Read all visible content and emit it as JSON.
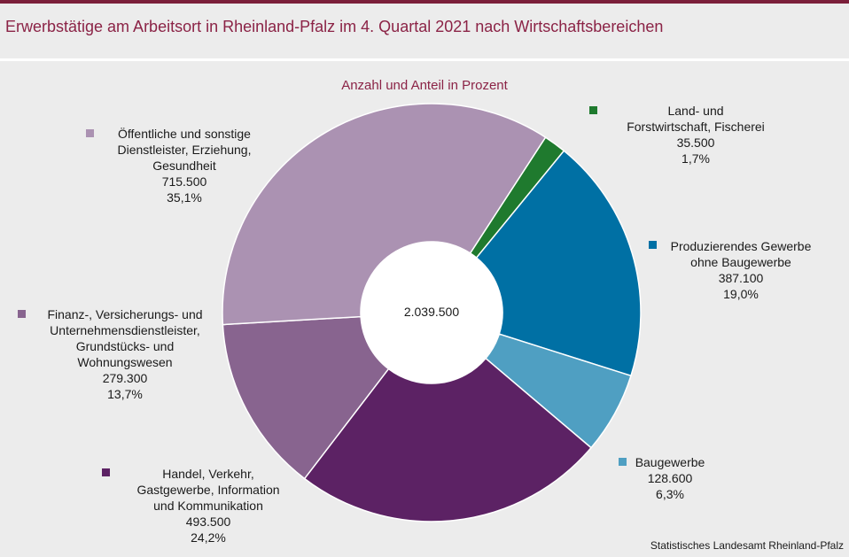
{
  "title": "Erwerbstätige am Arbeitsort in Rheinland-Pfalz im 4. Quartal 2021 nach Wirtschaftsbereichen",
  "subtitle": "Anzahl und Anteil in Prozent",
  "source": "Statistisches Landesamt Rheinland-Pfalz",
  "chart_data": {
    "type": "pie",
    "donut": true,
    "total_label": "2.039.500",
    "total": 2039500,
    "slices": [
      {
        "label_lines": [
          "Land- und",
          "Forstwirtschaft, Fischerei"
        ],
        "value": 35500,
        "value_label": "35.500",
        "percent": 1.7,
        "percent_label": "1,7%",
        "color": "#1f7a2e"
      },
      {
        "label_lines": [
          "Produzierendes Gewerbe",
          "ohne Baugewerbe"
        ],
        "value": 387100,
        "value_label": "387.100",
        "percent": 19.0,
        "percent_label": "19,0%",
        "color": "#0070a4"
      },
      {
        "label_lines": [
          "Baugewerbe"
        ],
        "value": 128600,
        "value_label": "128.600",
        "percent": 6.3,
        "percent_label": "6,3%",
        "color": "#4f9fc2"
      },
      {
        "label_lines": [
          "Handel, Verkehr,",
          "Gastgewerbe, Information",
          "und Kommunikation"
        ],
        "value": 493500,
        "value_label": "493.500",
        "percent": 24.2,
        "percent_label": "24,2%",
        "color": "#5c2264"
      },
      {
        "label_lines": [
          "Finanz-, Versicherungs- und",
          "Unternehmensdienstleister,",
          "Grundstücks- und",
          "Wohnungswesen"
        ],
        "value": 279300,
        "value_label": "279.300",
        "percent": 13.7,
        "percent_label": "13,7%",
        "color": "#88648f"
      },
      {
        "label_lines": [
          "Öffentliche und sonstige",
          "Dienstleister, Erziehung,",
          "Gesundheit"
        ],
        "value": 715500,
        "value_label": "715.500",
        "percent": 35.1,
        "percent_label": "35,1%",
        "color": "#ab92b2"
      }
    ]
  }
}
